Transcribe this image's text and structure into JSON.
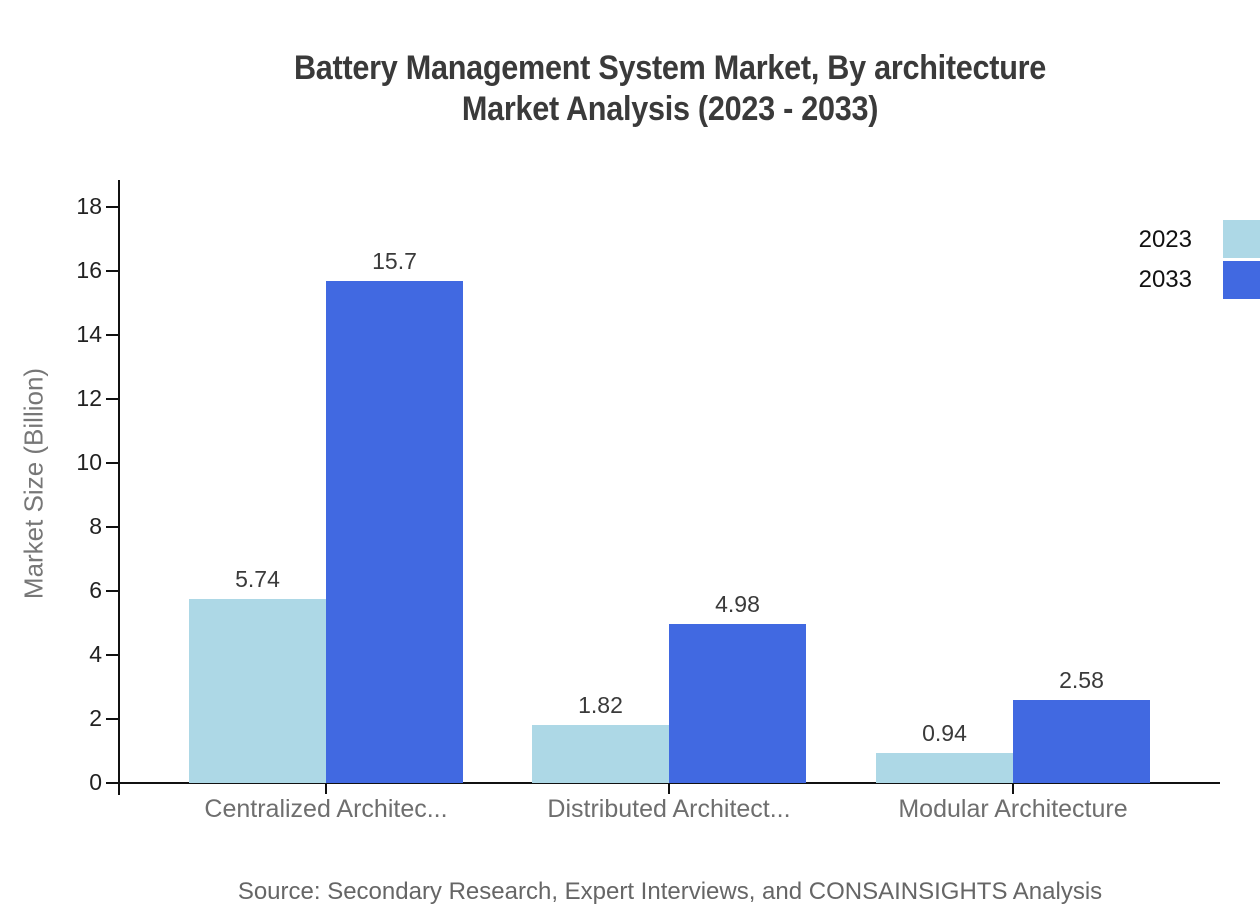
{
  "title": {
    "line1": "Battery Management System Market, By architecture",
    "line2": "Market Analysis (2023 - 2033)"
  },
  "chart_data": {
    "type": "bar",
    "categories": [
      "Centralized Architec...",
      "Distributed Architect...",
      "Modular Architecture"
    ],
    "series": [
      {
        "name": "2023",
        "color": "#add8e6",
        "values": [
          5.74,
          1.82,
          0.94
        ],
        "labels": [
          "5.74",
          "1.82",
          "0.94"
        ]
      },
      {
        "name": "2033",
        "color": "#4169e1",
        "values": [
          15.7,
          4.98,
          2.58
        ],
        "labels": [
          "15.7",
          "4.98",
          "2.58"
        ]
      }
    ],
    "title": "Battery Management System Market, By architecture Market Analysis (2023 - 2033)",
    "xlabel": "",
    "ylabel": "Market Size (Billion)",
    "ylim": [
      0,
      18
    ],
    "ytick_step": 2,
    "ytick_labels": [
      "0",
      "2",
      "4",
      "6",
      "8",
      "10",
      "12",
      "14",
      "16",
      "18"
    ],
    "grid": false,
    "legend_position": "top-right",
    "bar_value_labels_shown": true
  },
  "source": "Source: Secondary Research, Expert Interviews, and CONSAINSIGHTS Analysis",
  "colors": {
    "title_text": "#3a3a3a",
    "axis": "#111111",
    "ytick_label": "#222222",
    "category_label": "#6e6e6e",
    "ylabel_text": "#777777",
    "source_text": "#666666",
    "series_2023": "#add8e6",
    "series_2033": "#4169e1",
    "background": "#ffffff"
  }
}
